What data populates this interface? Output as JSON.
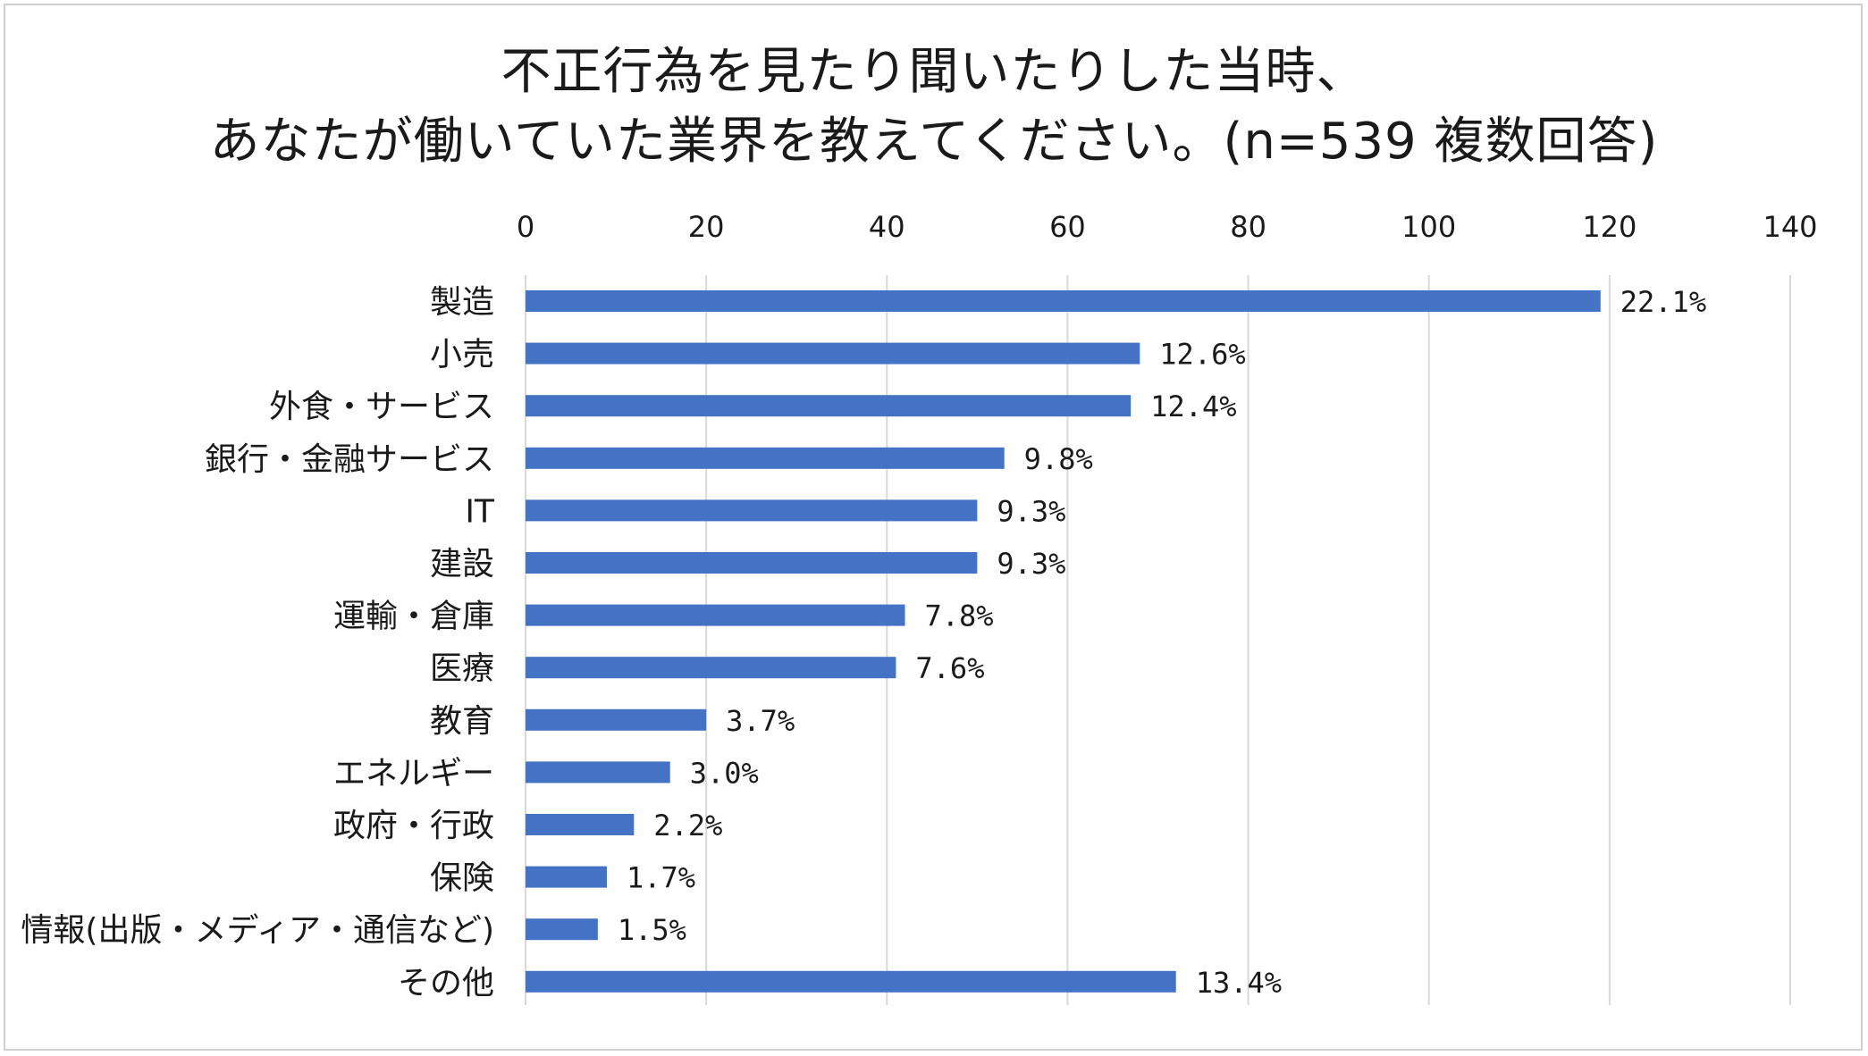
{
  "chart_data": {
    "type": "bar",
    "orientation": "horizontal",
    "title_lines": [
      "不正行為を見たり聞いたりした当時、",
      "あなたが働いていた業界を教えてください。(n=539 複数回答)"
    ],
    "xlabel": "",
    "ylabel": "",
    "xlim": [
      0,
      140
    ],
    "x_ticks": [
      0,
      20,
      40,
      60,
      80,
      100,
      120,
      140
    ],
    "x_axis_position": "top",
    "grid": true,
    "legend": "none",
    "bar_color": "#4472C4",
    "grid_color": "#d9d9d9",
    "categories": [
      "製造",
      "小売",
      "外食・サービス",
      "銀行・金融サービス",
      "IT",
      "建設",
      "運輸・倉庫",
      "医療",
      "教育",
      "エネルギー",
      "政府・行政",
      "保険",
      "情報(出版・メディア・通信など)",
      "その他"
    ],
    "values": [
      119,
      68,
      67,
      53,
      50,
      50,
      42,
      41,
      20,
      16,
      12,
      9,
      8,
      72
    ],
    "data_labels": [
      "22.1%",
      "12.6%",
      "12.4%",
      "9.8%",
      "9.3%",
      "9.3%",
      "7.8%",
      "7.6%",
      "3.7%",
      "3.0%",
      "2.2%",
      "1.7%",
      "1.5%",
      "13.4%"
    ]
  }
}
